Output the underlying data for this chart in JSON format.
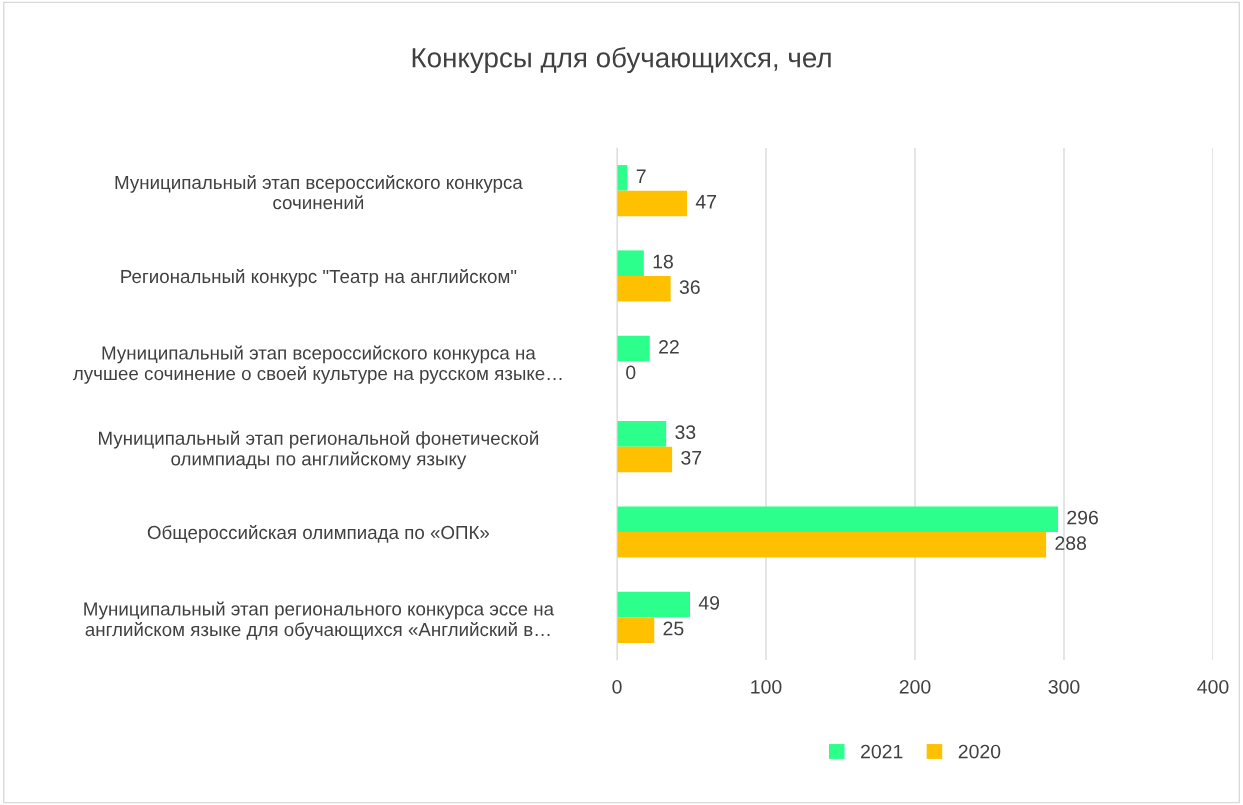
{
  "chart_data": {
    "type": "bar",
    "orientation": "horizontal",
    "title": "Конкурсы для обучающихся, чел",
    "categories": [
      "Муниципальный этап всероссийского конкурса\nсочинений",
      "Региональный конкурс \"Театр на английском\"",
      "Муниципальный этап всероссийского конкурса на\nлучшее сочинение о своей культуре на русском языке…",
      "Муниципальный этап региональной фонетической\nолимпиады по английскому языку",
      "Общероссийская олимпиада по «ОПК»",
      "Муниципальный этап регионального конкурса эссе на\nанглийском языке для обучающихся «Английский в…"
    ],
    "series": [
      {
        "name": "2021",
        "color": "#2cff8c",
        "values": [
          7,
          18,
          22,
          33,
          296,
          49
        ]
      },
      {
        "name": "2020",
        "color": "#ffc000",
        "values": [
          47,
          36,
          0,
          37,
          288,
          25
        ]
      }
    ],
    "xlim": [
      0,
      400
    ],
    "xticks": [
      0,
      100,
      200,
      300,
      400
    ],
    "grid": "x",
    "legend": "bottom",
    "data_labels": true
  }
}
